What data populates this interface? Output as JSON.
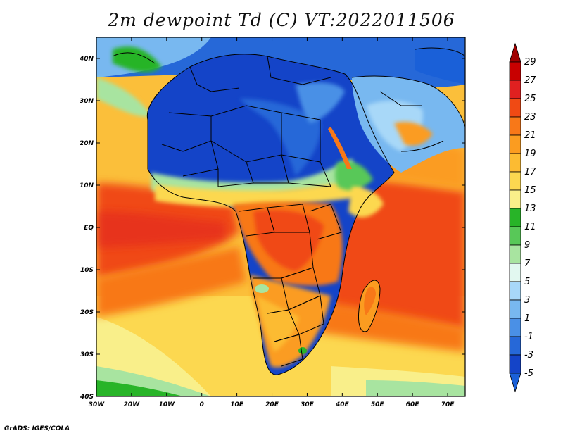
{
  "title": "2m dewpoint Td (C) VT:2022011506",
  "credit": "GrADS: IGES/COLA",
  "map": {
    "region": "Africa",
    "lon_range": [
      -30,
      75
    ],
    "lat_range": [
      -40,
      45
    ],
    "lon_ticks": [
      "30W",
      "20W",
      "10W",
      "0",
      "10E",
      "20E",
      "30E",
      "40E",
      "50E",
      "60E",
      "70E"
    ],
    "lat_ticks": [
      "40N",
      "30N",
      "20N",
      "10N",
      "EQ",
      "10S",
      "20S",
      "30S",
      "40S"
    ]
  },
  "colorbar": {
    "labels": [
      "29",
      "27",
      "25",
      "23",
      "21",
      "19",
      "17",
      "15",
      "13",
      "11",
      "9",
      "7",
      "5",
      "3",
      "1",
      "-1",
      "-3",
      "-5"
    ],
    "colors": [
      "#a00000",
      "#c80000",
      "#e02020",
      "#f04a14",
      "#f87818",
      "#fb9c20",
      "#fcbb32",
      "#fcd850",
      "#f9ef8a",
      "#28b428",
      "#58c858",
      "#a8e4a0",
      "#e2f8f0",
      "#a8d8f8",
      "#78b8f0",
      "#4a90e6",
      "#2668d8",
      "#1444c8",
      "#1a60d8"
    ]
  }
}
